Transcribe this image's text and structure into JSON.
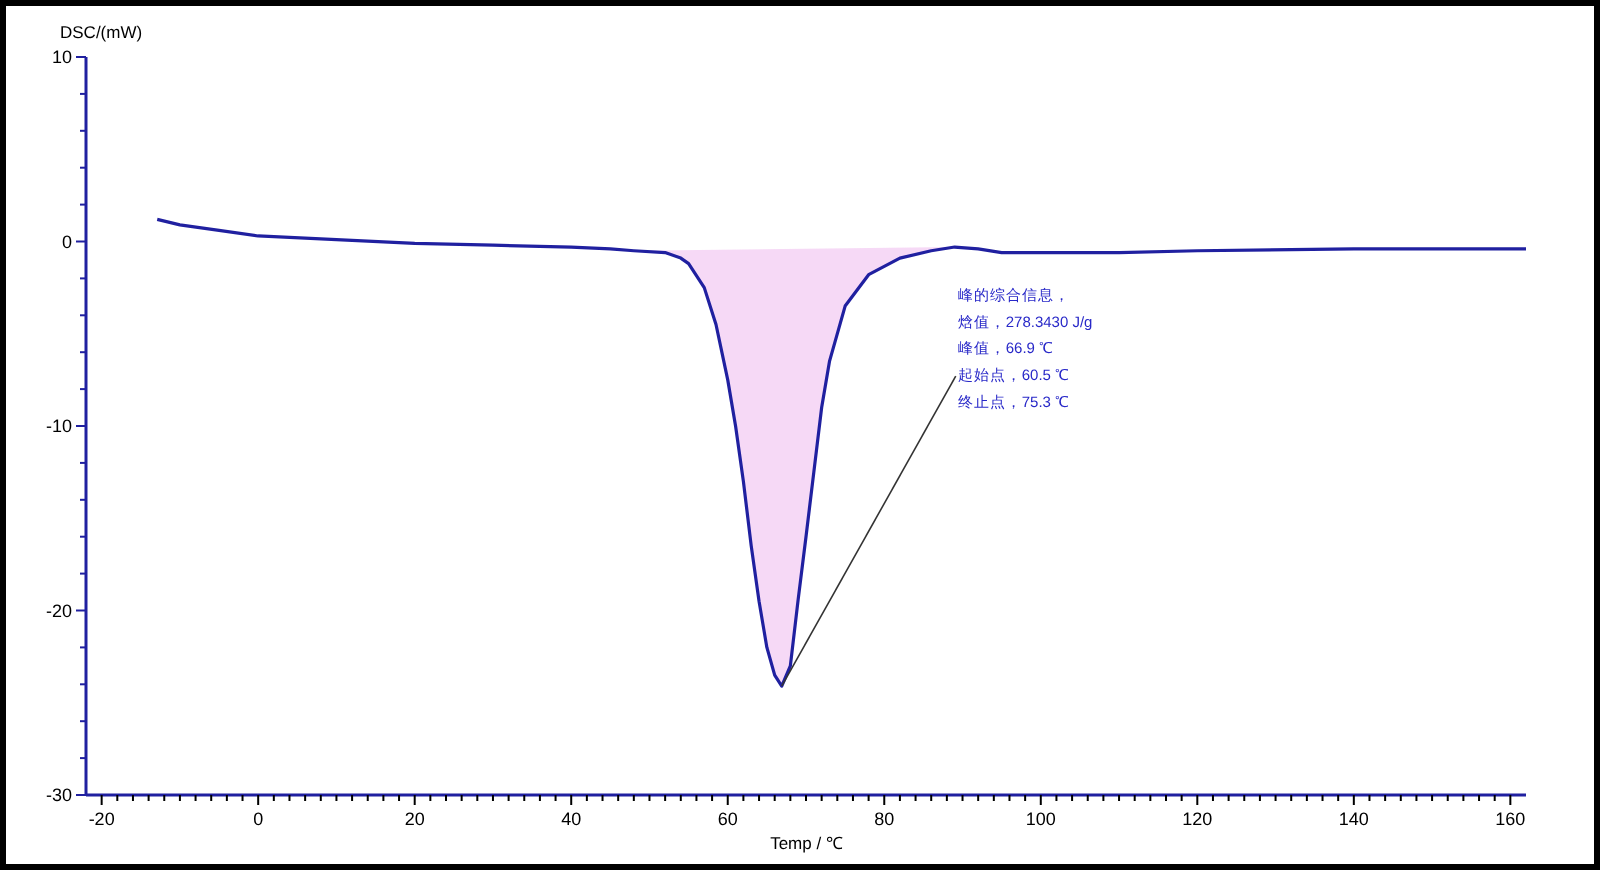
{
  "chart_data": {
    "type": "line",
    "xlabel": "Temp / ℃",
    "ylabel": "DSC/(mW)",
    "xlim": [
      -22,
      162
    ],
    "ylim": [
      -30,
      10
    ],
    "xticks": [
      -20,
      {
        "value": -18,
        "label": null
      },
      {
        "value": -16,
        "label": null
      },
      {
        "value": -14,
        "label": null
      },
      {
        "value": -12,
        "label": null
      },
      {
        "value": -10,
        "label": null
      },
      {
        "value": -8,
        "label": null
      },
      {
        "value": -6,
        "label": null
      },
      {
        "value": -4,
        "label": null
      },
      {
        "value": -2,
        "label": null
      },
      0,
      {
        "value": 2,
        "label": null
      },
      {
        "value": 4,
        "label": null
      },
      {
        "value": 6,
        "label": null
      },
      {
        "value": 8,
        "label": null
      },
      {
        "value": 10,
        "label": null
      },
      {
        "value": 12,
        "label": null
      },
      {
        "value": 14,
        "label": null
      },
      {
        "value": 16,
        "label": null
      },
      {
        "value": 18,
        "label": null
      },
      20,
      {
        "value": 22,
        "label": null
      },
      {
        "value": 24,
        "label": null
      },
      {
        "value": 26,
        "label": null
      },
      {
        "value": 28,
        "label": null
      },
      {
        "value": 30,
        "label": null
      },
      {
        "value": 32,
        "label": null
      },
      {
        "value": 34,
        "label": null
      },
      {
        "value": 36,
        "label": null
      },
      {
        "value": 38,
        "label": null
      },
      40,
      {
        "value": 42,
        "label": null
      },
      {
        "value": 44,
        "label": null
      },
      {
        "value": 46,
        "label": null
      },
      {
        "value": 48,
        "label": null
      },
      {
        "value": 50,
        "label": null
      },
      {
        "value": 52,
        "label": null
      },
      {
        "value": 54,
        "label": null
      },
      {
        "value": 56,
        "label": null
      },
      {
        "value": 58,
        "label": null
      },
      60,
      {
        "value": 62,
        "label": null
      },
      {
        "value": 64,
        "label": null
      },
      {
        "value": 66,
        "label": null
      },
      {
        "value": 68,
        "label": null
      },
      {
        "value": 70,
        "label": null
      },
      {
        "value": 72,
        "label": null
      },
      {
        "value": 74,
        "label": null
      },
      {
        "value": 76,
        "label": null
      },
      {
        "value": 78,
        "label": null
      },
      80,
      {
        "value": 82,
        "label": null
      },
      {
        "value": 84,
        "label": null
      },
      {
        "value": 86,
        "label": null
      },
      {
        "value": 88,
        "label": null
      },
      {
        "value": 90,
        "label": null
      },
      {
        "value": 92,
        "label": null
      },
      {
        "value": 94,
        "label": null
      },
      {
        "value": 96,
        "label": null
      },
      {
        "value": 98,
        "label": null
      },
      100,
      {
        "value": 102,
        "label": null
      },
      {
        "value": 104,
        "label": null
      },
      {
        "value": 106,
        "label": null
      },
      {
        "value": 108,
        "label": null
      },
      {
        "value": 110,
        "label": null
      },
      {
        "value": 112,
        "label": null
      },
      {
        "value": 114,
        "label": null
      },
      {
        "value": 116,
        "label": null
      },
      {
        "value": 118,
        "label": null
      },
      120,
      {
        "value": 122,
        "label": null
      },
      {
        "value": 124,
        "label": null
      },
      {
        "value": 126,
        "label": null
      },
      {
        "value": 128,
        "label": null
      },
      {
        "value": 130,
        "label": null
      },
      {
        "value": 132,
        "label": null
      },
      {
        "value": 134,
        "label": null
      },
      {
        "value": 136,
        "label": null
      },
      {
        "value": 138,
        "label": null
      },
      140,
      {
        "value": 142,
        "label": null
      },
      {
        "value": 144,
        "label": null
      },
      {
        "value": 146,
        "label": null
      },
      {
        "value": 148,
        "label": null
      },
      {
        "value": 150,
        "label": null
      },
      {
        "value": 152,
        "label": null
      },
      {
        "value": 154,
        "label": null
      },
      {
        "value": 156,
        "label": null
      },
      {
        "value": 158,
        "label": null
      },
      160
    ],
    "yticks": [
      -30,
      {
        "value": -28,
        "label": null
      },
      {
        "value": -26,
        "label": null
      },
      {
        "value": -24,
        "label": null
      },
      {
        "value": -22,
        "label": null
      },
      -20,
      {
        "value": -18,
        "label": null
      },
      {
        "value": -16,
        "label": null
      },
      {
        "value": -14,
        "label": null
      },
      {
        "value": -12,
        "label": null
      },
      -10,
      {
        "value": -8,
        "label": null
      },
      {
        "value": -6,
        "label": null
      },
      {
        "value": -4,
        "label": null
      },
      {
        "value": -2,
        "label": null
      },
      0,
      {
        "value": 2,
        "label": null
      },
      {
        "value": 4,
        "label": null
      },
      {
        "value": 6,
        "label": null
      },
      {
        "value": 8,
        "label": null
      },
      10
    ],
    "grid": false,
    "marker": "none",
    "line_style": "solid",
    "series": [
      {
        "type": "area",
        "color": "#f0c0f0",
        "x": [
          48,
          52,
          54,
          55,
          57,
          58.5,
          60,
          61,
          62,
          63,
          64,
          65,
          66,
          66.9,
          68,
          69,
          70,
          71,
          72,
          73,
          75,
          78,
          82,
          86,
          89
        ],
        "values": [
          -0.5,
          -0.6,
          -0.9,
          -1.2,
          -2.5,
          -4.5,
          -7.5,
          -10,
          -13,
          -16.5,
          -19.5,
          -22,
          -23.5,
          -24.1,
          -23,
          -19.4,
          -16,
          -12.5,
          -9,
          -6.5,
          -3.5,
          -1.8,
          -0.9,
          -0.5,
          -0.3
        ]
      },
      {
        "color": "#2020a0",
        "x": [
          -12.9,
          -10,
          -5,
          0,
          10,
          20,
          30,
          40,
          45,
          48,
          52,
          54,
          55,
          57,
          58.5,
          60,
          61,
          62,
          63,
          64,
          65,
          66,
          66.9,
          68,
          69,
          70,
          71,
          72,
          73,
          75,
          78,
          82,
          86,
          89,
          92,
          95,
          100,
          110,
          120,
          140,
          162
        ],
        "values": [
          1.2,
          0.9,
          0.6,
          0.3,
          0.1,
          -0.1,
          -0.2,
          -0.3,
          -0.4,
          -0.5,
          -0.6,
          -0.9,
          -1.2,
          -2.5,
          -4.5,
          -7.5,
          -10,
          -13,
          -16.5,
          -19.5,
          -22,
          -23.5,
          -24.1,
          -23,
          -19.4,
          -16,
          -12.5,
          -9,
          -6.5,
          -3.5,
          -1.8,
          -0.9,
          -0.5,
          -0.3,
          -0.4,
          -0.6,
          -0.6,
          -0.6,
          -0.5,
          -0.4,
          -0.4
        ]
      }
    ],
    "annotations": [
      "峰的综合信息，",
      "焓值，278.3430 J/g",
      {
        "text": "峰值，66.9 ℃",
        "x": 66.9,
        "y": -24.1
      },
      "起始点，60.5 ℃",
      "终止点，75.3 ℃"
    ]
  }
}
